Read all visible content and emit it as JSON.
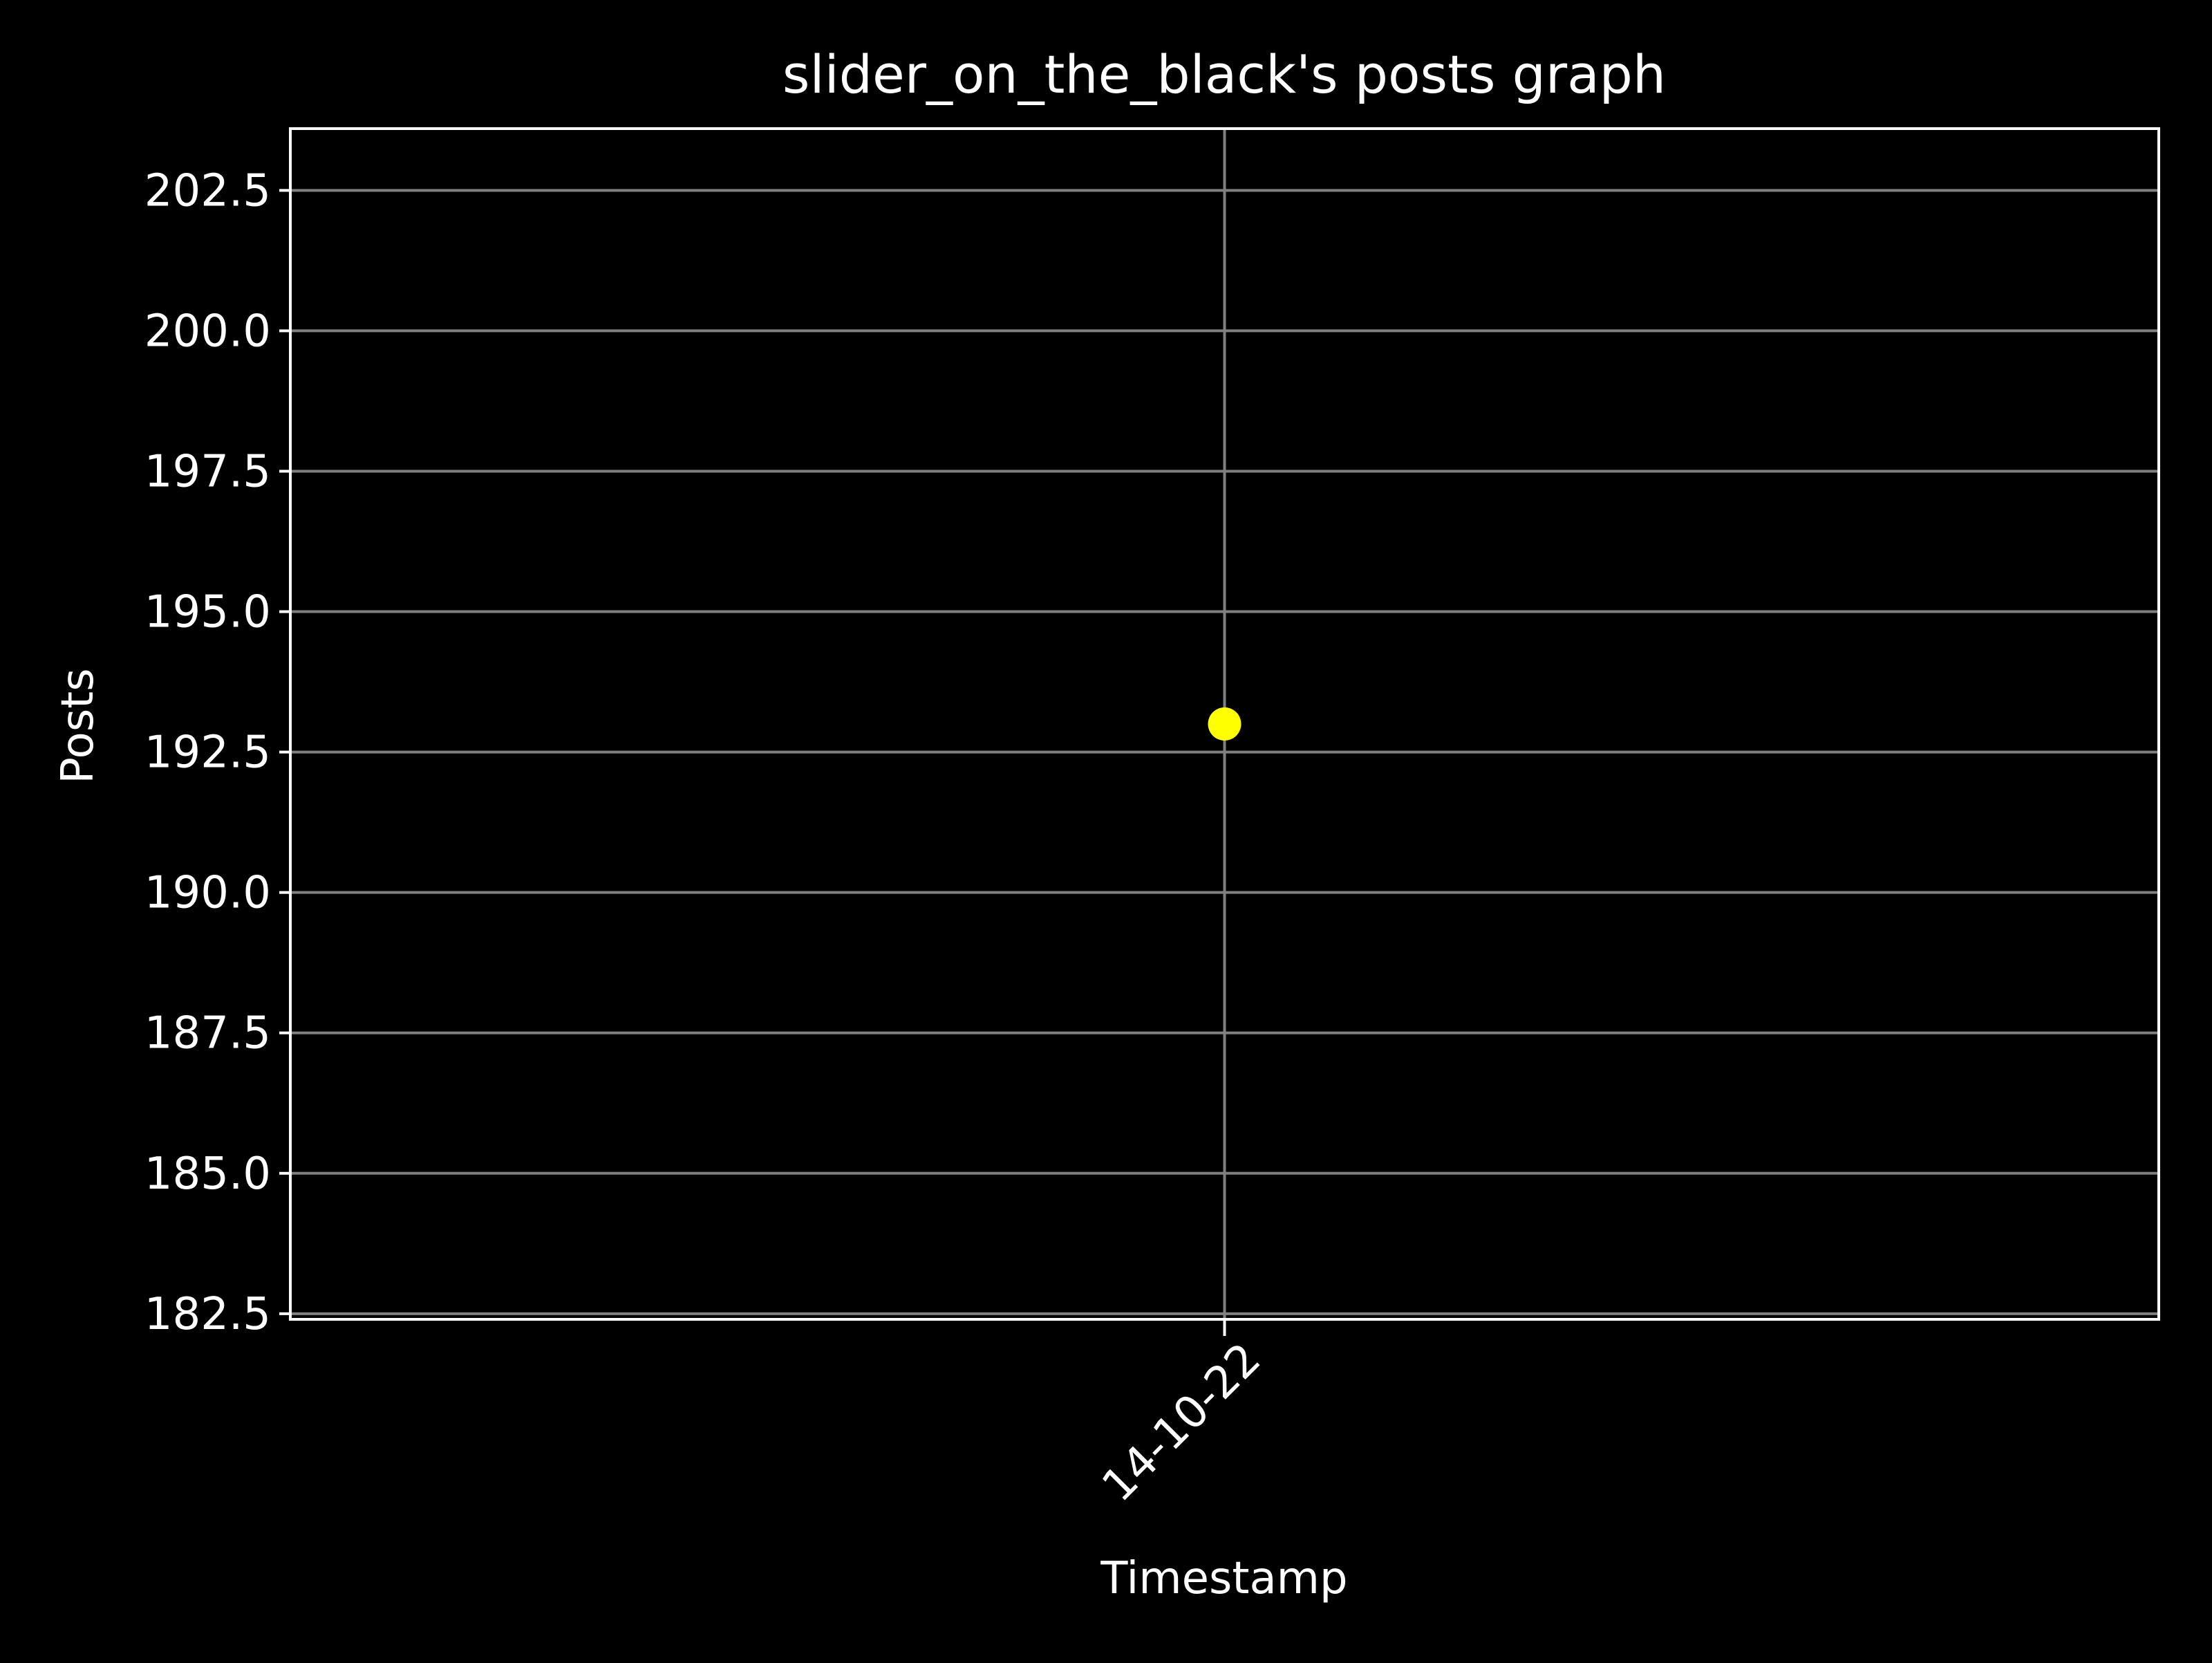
{
  "chart_data": {
    "type": "scatter",
    "title": "slider_on_the_black's posts graph",
    "xlabel": "Timestamp",
    "ylabel": "Posts",
    "x_tick_labels": [
      "14-10-22"
    ],
    "x": [
      "14-10-22"
    ],
    "y": [
      193
    ],
    "ylim": [
      182.4,
      203.6
    ],
    "y_ticks": [
      182.5,
      185.0,
      187.5,
      190.0,
      192.5,
      195.0,
      197.5,
      200.0,
      202.5
    ],
    "grid": true,
    "marker_color": "#ffff00",
    "background_color": "#000000",
    "axis_color": "#ffffff",
    "grid_color": "#808080"
  }
}
